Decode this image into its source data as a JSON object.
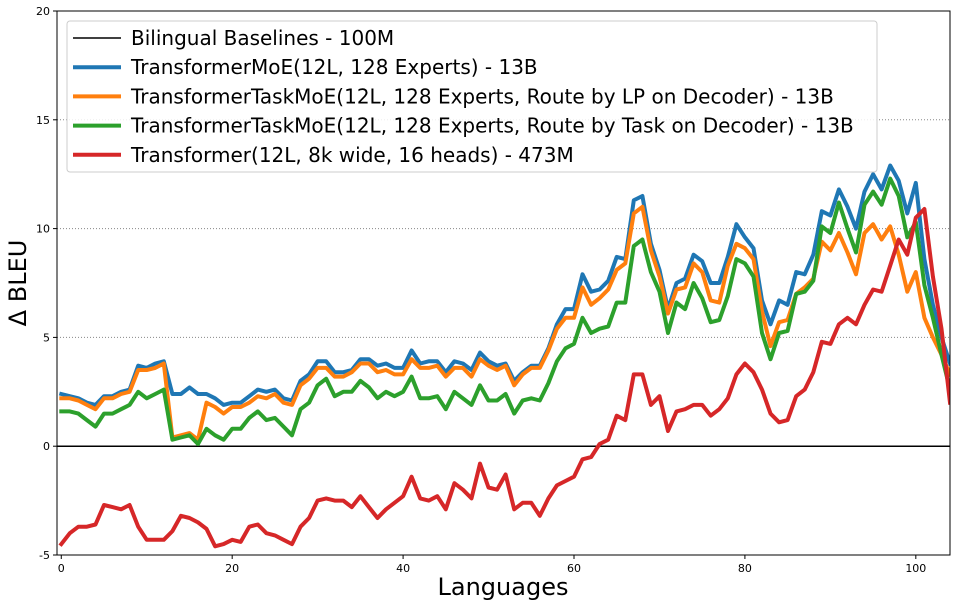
{
  "chart_data": {
    "type": "line",
    "title": "",
    "xlabel": "Languages",
    "ylabel": "Δ BLEU",
    "xlim": [
      -0.5,
      104
    ],
    "ylim": [
      -5,
      20
    ],
    "x_ticks": [
      0,
      20,
      40,
      60,
      80,
      100
    ],
    "y_ticks": [
      -5,
      0,
      5,
      10,
      15,
      20
    ],
    "grid": "horizontal dotted",
    "legend_position": "top-left",
    "series": [
      {
        "name": "Bilingual Baselines - 100M",
        "color": "#000000",
        "x": [
          -0.5,
          104
        ],
        "values": [
          0,
          0
        ]
      },
      {
        "name": "TransformerMoE(12L, 128 Experts) -  13B",
        "color": "#1f77b4",
        "values": [
          2.4,
          2.3,
          2.2,
          2.0,
          1.9,
          2.3,
          2.3,
          2.5,
          2.6,
          3.7,
          3.6,
          3.8,
          3.9,
          2.4,
          2.4,
          2.7,
          2.4,
          2.4,
          2.2,
          1.9,
          2.0,
          2.0,
          2.3,
          2.6,
          2.5,
          2.6,
          2.2,
          2.1,
          3.0,
          3.3,
          3.9,
          3.9,
          3.4,
          3.4,
          3.5,
          4.0,
          4.0,
          3.7,
          3.8,
          3.6,
          3.6,
          4.4,
          3.8,
          3.9,
          3.9,
          3.4,
          3.9,
          3.8,
          3.5,
          4.3,
          3.9,
          3.7,
          3.8,
          3.0,
          3.4,
          3.7,
          3.7,
          4.5,
          5.6,
          6.3,
          6.3,
          7.9,
          7.1,
          7.2,
          7.6,
          8.7,
          8.6,
          11.3,
          11.5,
          9.3,
          8.1,
          6.3,
          7.5,
          7.7,
          8.8,
          8.5,
          7.5,
          7.5,
          8.7,
          10.2,
          9.6,
          9.1,
          6.7,
          5.6,
          6.7,
          6.5,
          8.0,
          7.9,
          8.8,
          10.8,
          10.6,
          11.8,
          11.0,
          10.0,
          11.7,
          12.5,
          11.8,
          12.9,
          12.2,
          10.7,
          12.1,
          8.6,
          6.5,
          5.0,
          3.8
        ]
      },
      {
        "name": "TransformerTaskMoE(12L, 128 Experts, Route by LP on Decoder) - 13B",
        "color": "#ff7f0e",
        "values": [
          2.2,
          2.2,
          2.1,
          1.9,
          1.7,
          2.2,
          2.2,
          2.4,
          2.5,
          3.5,
          3.5,
          3.6,
          3.8,
          0.4,
          0.5,
          0.6,
          0.3,
          2.0,
          1.8,
          1.5,
          1.8,
          1.8,
          2.0,
          2.3,
          2.2,
          2.4,
          2.0,
          1.9,
          2.8,
          3.1,
          3.6,
          3.6,
          3.2,
          3.2,
          3.4,
          3.8,
          3.8,
          3.4,
          3.5,
          3.3,
          3.3,
          4.0,
          3.6,
          3.6,
          3.7,
          3.2,
          3.6,
          3.6,
          3.2,
          4.0,
          3.7,
          3.5,
          3.7,
          2.8,
          3.3,
          3.6,
          3.6,
          4.4,
          5.4,
          5.9,
          5.9,
          7.3,
          6.5,
          6.8,
          7.2,
          8.1,
          8.4,
          10.7,
          11.0,
          9.0,
          7.8,
          6.1,
          7.2,
          7.3,
          8.4,
          8.0,
          6.7,
          6.6,
          8.3,
          9.3,
          9.1,
          8.6,
          6.2,
          4.6,
          5.7,
          5.8,
          7.0,
          7.3,
          7.7,
          9.4,
          9.0,
          9.8,
          8.9,
          7.9,
          9.8,
          10.2,
          9.5,
          10.1,
          8.8,
          7.1,
          8.0,
          5.9,
          5.0,
          4.2,
          3.3
        ]
      },
      {
        "name": "TransformerTaskMoE(12L, 128 Experts, Route by Task on Decoder) - 13B",
        "color": "#2ca02c",
        "values": [
          1.6,
          1.6,
          1.5,
          1.2,
          0.9,
          1.5,
          1.5,
          1.7,
          1.9,
          2.5,
          2.2,
          2.4,
          2.6,
          0.3,
          0.4,
          0.5,
          0.1,
          0.8,
          0.5,
          0.3,
          0.8,
          0.8,
          1.3,
          1.6,
          1.2,
          1.3,
          0.9,
          0.5,
          1.7,
          2.0,
          2.8,
          3.1,
          2.3,
          2.5,
          2.5,
          3.0,
          2.7,
          2.2,
          2.5,
          2.3,
          2.5,
          3.2,
          2.2,
          2.2,
          2.3,
          1.7,
          2.5,
          2.2,
          1.9,
          2.8,
          2.1,
          2.1,
          2.4,
          1.5,
          2.1,
          2.2,
          2.1,
          2.9,
          3.9,
          4.5,
          4.7,
          5.9,
          5.2,
          5.4,
          5.5,
          6.6,
          6.6,
          9.2,
          9.5,
          8.0,
          7.1,
          5.2,
          6.6,
          6.3,
          7.5,
          6.8,
          5.7,
          5.8,
          6.9,
          8.6,
          8.4,
          7.8,
          5.2,
          4.0,
          5.2,
          5.3,
          7.0,
          7.1,
          7.6,
          10.1,
          9.8,
          11.2,
          10.0,
          8.9,
          11.1,
          11.7,
          11.1,
          12.3,
          11.5,
          9.6,
          10.3,
          7.4,
          5.9,
          4.2,
          2.6
        ]
      },
      {
        "name": "Transformer(12L, 8k wide, 16 heads) - 473M",
        "color": "#d62728",
        "values": [
          -4.5,
          -4.0,
          -3.7,
          -3.7,
          -3.6,
          -2.7,
          -2.8,
          -2.9,
          -2.7,
          -3.7,
          -4.3,
          -4.3,
          -4.3,
          -3.9,
          -3.2,
          -3.3,
          -3.5,
          -3.8,
          -4.6,
          -4.5,
          -4.3,
          -4.4,
          -3.7,
          -3.6,
          -4.0,
          -4.1,
          -4.3,
          -4.5,
          -3.7,
          -3.3,
          -2.5,
          -2.4,
          -2.5,
          -2.5,
          -2.8,
          -2.3,
          -2.8,
          -3.3,
          -2.9,
          -2.6,
          -2.3,
          -1.4,
          -2.4,
          -2.5,
          -2.3,
          -2.9,
          -1.7,
          -2.0,
          -2.4,
          -0.8,
          -1.9,
          -2.0,
          -1.3,
          -2.9,
          -2.6,
          -2.6,
          -3.2,
          -2.4,
          -1.8,
          -1.6,
          -1.4,
          -0.6,
          -0.5,
          0.1,
          0.3,
          1.4,
          1.2,
          3.3,
          3.3,
          1.9,
          2.3,
          0.7,
          1.6,
          1.7,
          1.9,
          1.9,
          1.4,
          1.7,
          2.2,
          3.3,
          3.8,
          3.4,
          2.6,
          1.5,
          1.1,
          1.2,
          2.3,
          2.6,
          3.4,
          4.8,
          4.7,
          5.6,
          5.9,
          5.6,
          6.5,
          7.2,
          7.1,
          8.3,
          9.5,
          8.8,
          10.5,
          10.9,
          7.8,
          5.4,
          2.0
        ]
      }
    ]
  }
}
